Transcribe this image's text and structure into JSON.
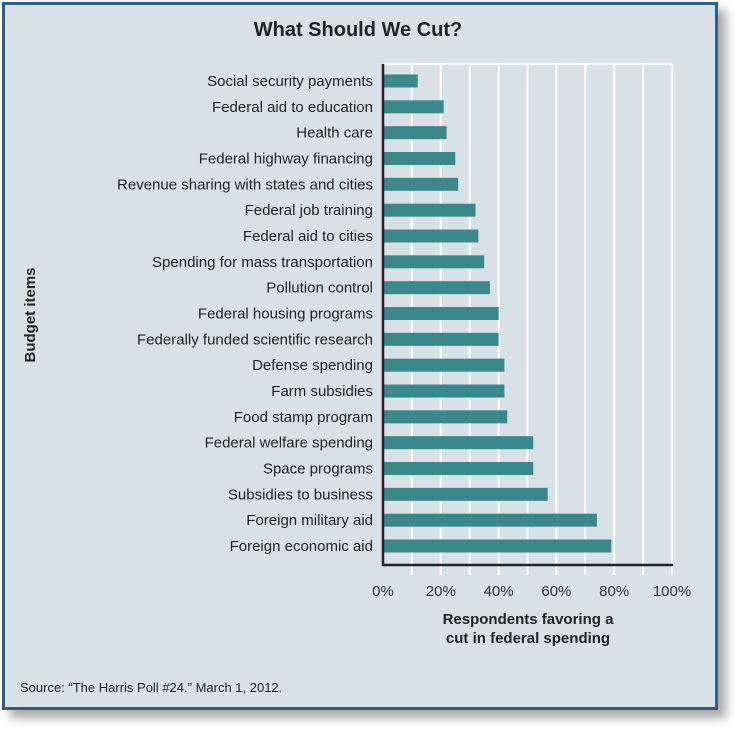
{
  "chart_data": {
    "type": "bar",
    "orientation": "horizontal",
    "title": "What Should We Cut?",
    "xlabel": "Respondents favoring a cut in federal spending",
    "ylabel": "Budget items",
    "xlim": [
      0,
      100
    ],
    "x_tick_labels": [
      "0%",
      "20%",
      "40%",
      "60%",
      "80%",
      "100%"
    ],
    "grid": true,
    "bar_color": "#3a878c",
    "categories": [
      "Social security payments",
      "Federal aid to education",
      "Health care",
      "Federal highway financing",
      "Revenue sharing with states and cities",
      "Federal job training",
      "Federal aid to cities",
      "Spending for mass transportation",
      "Pollution control",
      "Federal housing programs",
      "Federally funded scientific research",
      "Defense spending",
      "Farm subsidies",
      "Food stamp program",
      "Federal welfare spending",
      "Space programs",
      "Subsidies to business",
      "Foreign military aid",
      "Foreign economic aid"
    ],
    "values": [
      12,
      21,
      22,
      25,
      26,
      32,
      33,
      35,
      37,
      40,
      40,
      42,
      42,
      43,
      52,
      52,
      57,
      74,
      79
    ],
    "source": "Source: “The Harris Poll #24.” March 1, 2012."
  }
}
